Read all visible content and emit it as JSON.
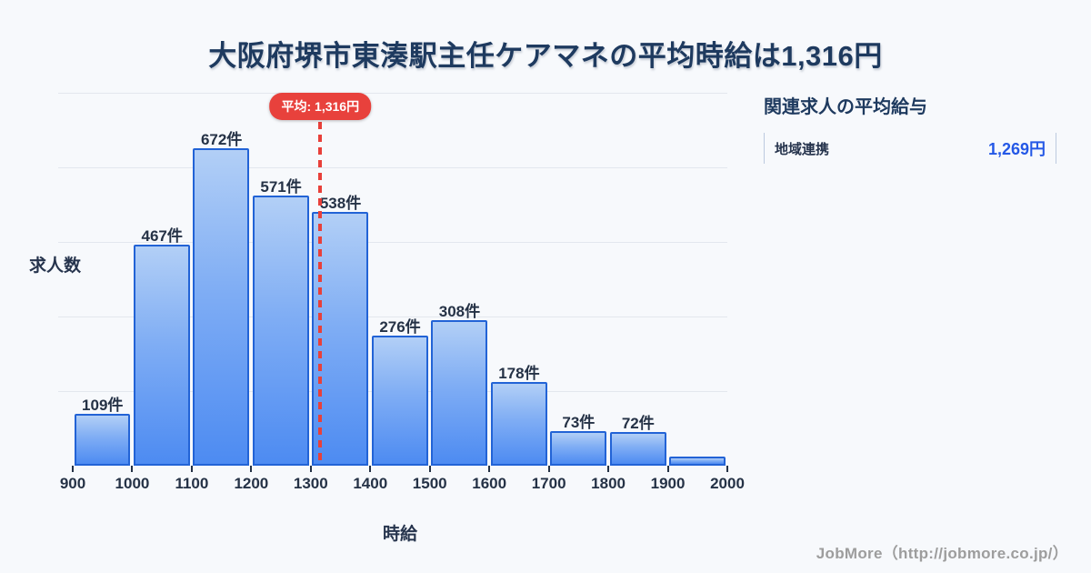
{
  "page": {
    "title": "大阪府堺市東湊駅主任ケアマネの平均時給は1,316円",
    "background_color": "#f7f9fc",
    "title_color": "#1e3a5f"
  },
  "chart_data": {
    "type": "bar",
    "title": "大阪府堺市東湊駅主任ケアマネの平均時給は1,316円",
    "xlabel": "時給",
    "ylabel": "求人数",
    "xlim": [
      900,
      2000
    ],
    "bin_edges": [
      900,
      1000,
      1100,
      1200,
      1300,
      1400,
      1500,
      1600,
      1700,
      1800,
      1900,
      2000
    ],
    "x_ticks": [
      "900",
      "1000",
      "1100",
      "1200",
      "1300",
      "1400",
      "1500",
      "1600",
      "1700",
      "1800",
      "1900",
      "2000"
    ],
    "values": [
      109,
      467,
      672,
      571,
      538,
      276,
      308,
      178,
      73,
      72,
      20
    ],
    "bar_labels": [
      "109件",
      "467件",
      "672件",
      "571件",
      "538件",
      "276件",
      "308件",
      "178件",
      "73件",
      "72件",
      ""
    ],
    "average": {
      "value": 1316,
      "label": "平均: 1,316円"
    },
    "grid": true,
    "colors": {
      "bar_fill_top": "#b2cff6",
      "bar_fill_bottom": "#4d8bf2",
      "bar_border": "#2263d6",
      "average_line": "#e8403a",
      "average_badge_bg": "#e8413c",
      "gridline": "#e3e7ee"
    }
  },
  "side_panel": {
    "heading": "関連求人の平均給与",
    "rows": [
      {
        "label": "地域連携",
        "value": "1,269円"
      }
    ],
    "value_color": "#2458e6"
  },
  "footer": {
    "credit": "JobMore（http://jobmore.co.jp/）"
  }
}
